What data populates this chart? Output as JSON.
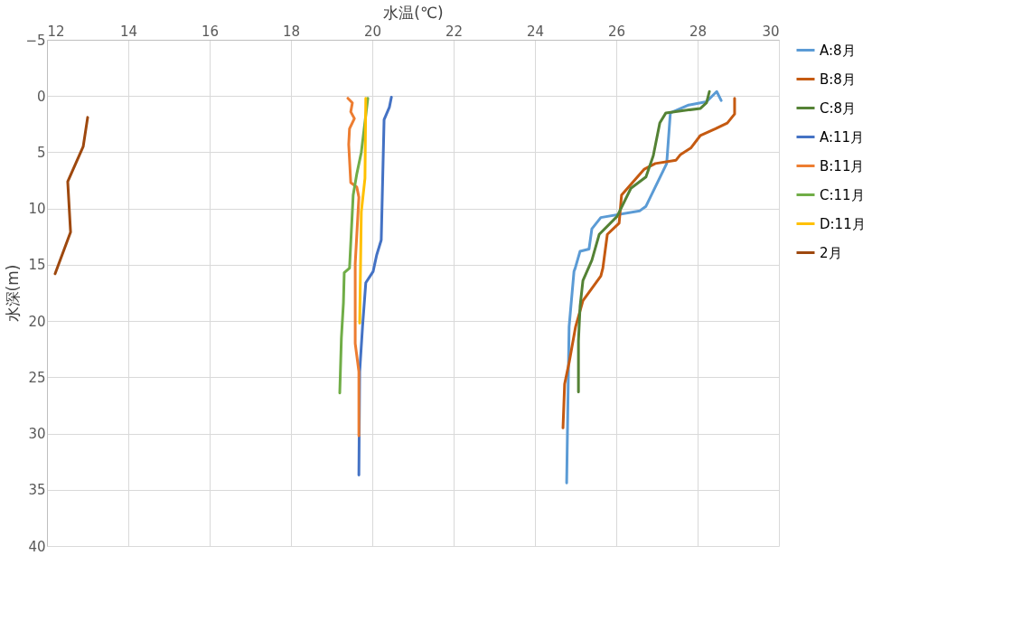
{
  "chart_data": {
    "type": "line",
    "xlabel": "水温(℃)",
    "ylabel": "水深(m)",
    "xlim": [
      12,
      30
    ],
    "xticks": [
      12,
      14,
      16,
      18,
      20,
      22,
      24,
      26,
      28,
      30
    ],
    "ylim": [
      40,
      -5
    ],
    "yticks": [
      -5,
      0,
      5,
      10,
      15,
      20,
      25,
      30,
      35,
      40
    ],
    "grid": true,
    "legend": "right",
    "marker": "none",
    "line_style": "solid",
    "series": [
      {
        "name": "A:8月",
        "color": "#5b9bd5",
        "x": [
          28.58,
          28.47,
          28.22,
          27.78,
          27.33,
          27.24,
          26.73,
          26.58,
          25.62,
          25.4,
          25.33,
          25.11,
          24.99,
          24.96,
          24.84,
          24.78
        ],
        "values": [
          0.4,
          -0.4,
          0.5,
          0.8,
          1.5,
          6.0,
          9.8,
          10.2,
          10.8,
          11.8,
          13.6,
          13.8,
          15.3,
          15.6,
          20.5,
          34.4
        ]
      },
      {
        "name": "B:8月",
        "color": "#c55a11",
        "x": [
          28.91,
          28.91,
          28.73,
          28.44,
          28.07,
          27.84,
          27.58,
          27.47,
          26.96,
          26.69,
          26.13,
          26.07,
          25.78,
          25.67,
          25.62,
          25.18,
          25.0,
          24.84,
          24.73,
          24.69
        ],
        "values": [
          0.2,
          1.6,
          2.4,
          2.9,
          3.5,
          4.6,
          5.2,
          5.7,
          6.0,
          6.5,
          8.8,
          11.3,
          12.3,
          15.3,
          16.0,
          18.2,
          20.5,
          23.7,
          25.6,
          29.5
        ]
      },
      {
        "name": "C:8月",
        "color": "#548235",
        "x": [
          28.29,
          28.22,
          28.07,
          27.22,
          27.07,
          26.91,
          26.73,
          26.36,
          26.02,
          25.58,
          25.4,
          25.18,
          25.11,
          25.07,
          25.07
        ],
        "values": [
          -0.4,
          0.6,
          1.1,
          1.5,
          2.4,
          5.3,
          7.2,
          8.2,
          10.7,
          12.3,
          14.6,
          16.4,
          18.7,
          21.8,
          26.3
        ]
      },
      {
        "name": "A:11月",
        "color": "#4472c4",
        "x": [
          20.47,
          20.42,
          20.29,
          20.22,
          20.11,
          20.02,
          19.84,
          19.76,
          19.69,
          19.67
        ],
        "values": [
          0.1,
          1.0,
          2.1,
          12.8,
          14.1,
          15.6,
          16.6,
          20.5,
          24.5,
          33.7
        ]
      },
      {
        "name": "B:11月",
        "color": "#ed7d31",
        "x": [
          19.4,
          19.51,
          19.47,
          19.56,
          19.44,
          19.42,
          19.47,
          19.62,
          19.67,
          19.58,
          19.58,
          19.67,
          19.67
        ],
        "values": [
          0.2,
          0.6,
          1.4,
          2.0,
          2.9,
          4.3,
          7.7,
          8.1,
          9.0,
          14.9,
          22.0,
          24.5,
          30.2
        ]
      },
      {
        "name": "C:11月",
        "color": "#70ad47",
        "x": [
          19.89,
          19.73,
          19.62,
          19.53,
          19.47,
          19.44,
          19.31,
          19.29,
          19.24,
          19.2
        ],
        "values": [
          0.2,
          5.0,
          6.9,
          8.8,
          13.1,
          15.3,
          15.7,
          18.4,
          21.5,
          26.4
        ]
      },
      {
        "name": "D:11月",
        "color": "#ffc000",
        "x": [
          19.84,
          19.82,
          19.73,
          19.69
        ],
        "values": [
          0.2,
          7.3,
          10.3,
          20.2
        ]
      },
      {
        "name": "2月",
        "color": "#9e480e",
        "x": [
          13.0,
          12.89,
          12.51,
          12.58,
          12.2
        ],
        "values": [
          1.9,
          4.5,
          7.6,
          12.1,
          15.8
        ]
      }
    ]
  }
}
